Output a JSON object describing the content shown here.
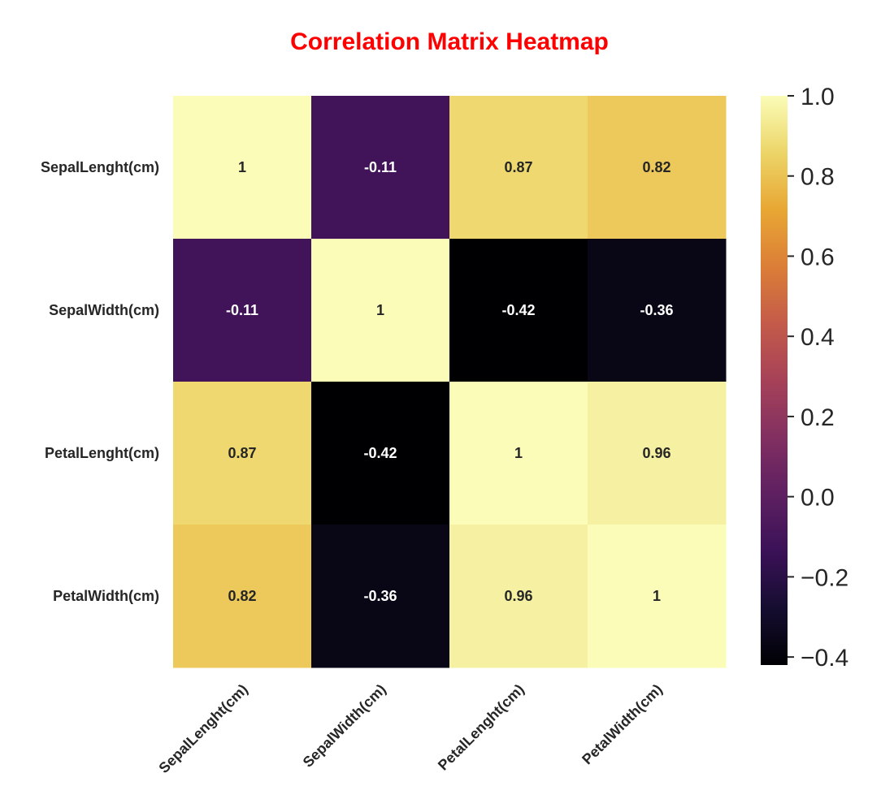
{
  "chart_data": {
    "type": "heatmap",
    "title": "Correlation Matrix Heatmap",
    "rows": [
      "SepalLenght(cm)",
      "SepalWidth(cm)",
      "PetalLenght(cm)",
      "PetalWidth(cm)"
    ],
    "columns": [
      "SepalLenght(cm)",
      "SepalWidth(cm)",
      "PetalLenght(cm)",
      "PetalWidth(cm)"
    ],
    "values": [
      [
        1,
        -0.11,
        0.87,
        0.82
      ],
      [
        -0.11,
        1,
        -0.42,
        -0.36
      ],
      [
        0.87,
        -0.42,
        1,
        0.96
      ],
      [
        0.82,
        -0.36,
        0.96,
        1
      ]
    ],
    "annotations": [
      [
        "1",
        "-0.11",
        "0.87",
        "0.82"
      ],
      [
        "-0.11",
        "1",
        "-0.42",
        "-0.36"
      ],
      [
        "0.87",
        "-0.42",
        "1",
        "0.96"
      ],
      [
        "0.82",
        "-0.36",
        "0.96",
        "1"
      ]
    ],
    "colormap": "inferno",
    "vmin": -0.42,
    "vmax": 1,
    "colorbar_ticks": [
      1.0,
      0.8,
      0.6,
      0.4,
      0.2,
      0.0,
      -0.2,
      -0.4
    ],
    "colorbar_tick_labels": [
      "1.0",
      "0.8",
      "0.6",
      "0.4",
      "0.2",
      "0.0",
      "−0.2",
      "−0.4"
    ],
    "colors": {
      "title": "#ff0000",
      "text_dark": "#262626",
      "annot_light": "#ffffff",
      "annot_dark": "#262626"
    },
    "grid": false,
    "legend": "colorbar-right"
  }
}
